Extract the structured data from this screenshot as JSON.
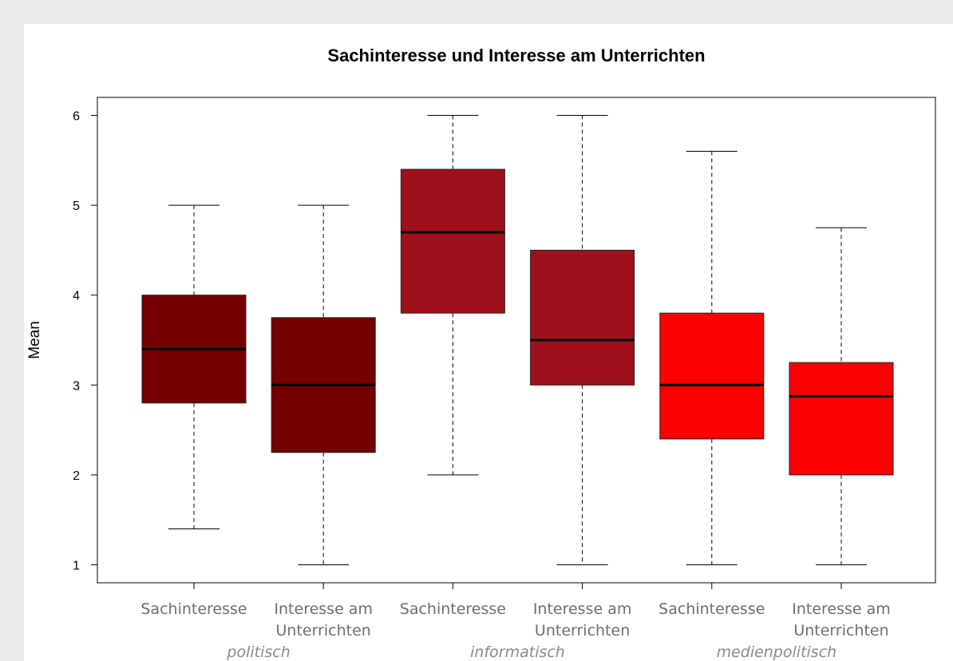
{
  "chart_data": {
    "type": "boxplot",
    "title": "Sachinteresse und Interesse am Unterrichten",
    "y_label": "Mean",
    "categories": [
      "Sachinteresse",
      "Interesse am Unterrichten",
      "Sachinteresse",
      "Interesse am Unterrichten",
      "Sachinteresse",
      "Interesse am Unterrichten"
    ],
    "groups": [
      "politisch",
      "informatisch",
      "medienpolitisch"
    ],
    "boxes": [
      {
        "whisker_low": 1.4,
        "q1": 2.8,
        "median": 3.4,
        "q3": 4.0,
        "whisker_high": 5.0,
        "color": "#750000"
      },
      {
        "whisker_low": 1.0,
        "q1": 2.25,
        "median": 3.0,
        "q3": 3.75,
        "whisker_high": 5.0,
        "color": "#750000"
      },
      {
        "whisker_low": 2.0,
        "q1": 3.8,
        "median": 4.7,
        "q3": 5.4,
        "whisker_high": 6.0,
        "color": "#9e111b"
      },
      {
        "whisker_low": 1.0,
        "q1": 3.0,
        "median": 3.5,
        "q3": 4.5,
        "whisker_high": 6.0,
        "color": "#9e111b"
      },
      {
        "whisker_low": 1.0,
        "q1": 2.4,
        "median": 3.0,
        "q3": 3.8,
        "whisker_high": 5.6,
        "color": "#ff0000"
      },
      {
        "whisker_low": 1.0,
        "q1": 2.0,
        "median": 2.875,
        "q3": 3.25,
        "whisker_high": 4.75,
        "color": "#ff0000"
      }
    ],
    "ylim": [
      0.8,
      6.2
    ],
    "yticks": [
      1,
      2,
      3,
      4,
      5,
      6
    ]
  }
}
